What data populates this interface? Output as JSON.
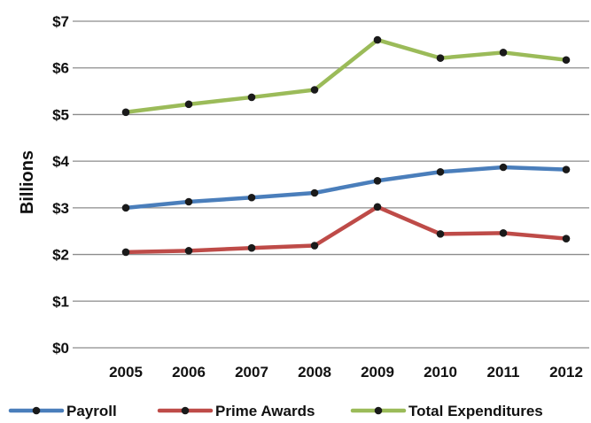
{
  "chart_data": {
    "type": "line",
    "title": "",
    "xlabel": "",
    "ylabel": "Billions",
    "ylim": [
      0,
      7
    ],
    "y_ticks": [
      0,
      1,
      2,
      3,
      4,
      5,
      6,
      7
    ],
    "y_tick_labels": [
      "$0",
      "$1",
      "$2",
      "$3",
      "$4",
      "$5",
      "$6",
      "$7"
    ],
    "categories": [
      "2005",
      "2006",
      "2007",
      "2008",
      "2009",
      "2010",
      "2011",
      "2012"
    ],
    "grid": "horizontal",
    "legend_position": "bottom",
    "series": [
      {
        "name": "Payroll",
        "color": "#4a7ebb",
        "values": [
          3.0,
          3.13,
          3.22,
          3.32,
          3.58,
          3.77,
          3.87,
          3.82
        ]
      },
      {
        "name": "Prime Awards",
        "color": "#be4b48",
        "values": [
          2.05,
          2.08,
          2.14,
          2.19,
          3.02,
          2.44,
          2.46,
          2.34
        ]
      },
      {
        "name": "Total Expenditures",
        "color": "#9bbb59",
        "values": [
          5.05,
          5.22,
          5.37,
          5.53,
          6.6,
          6.21,
          6.33,
          6.17
        ]
      }
    ],
    "marker_color": "#1a1a1a"
  }
}
